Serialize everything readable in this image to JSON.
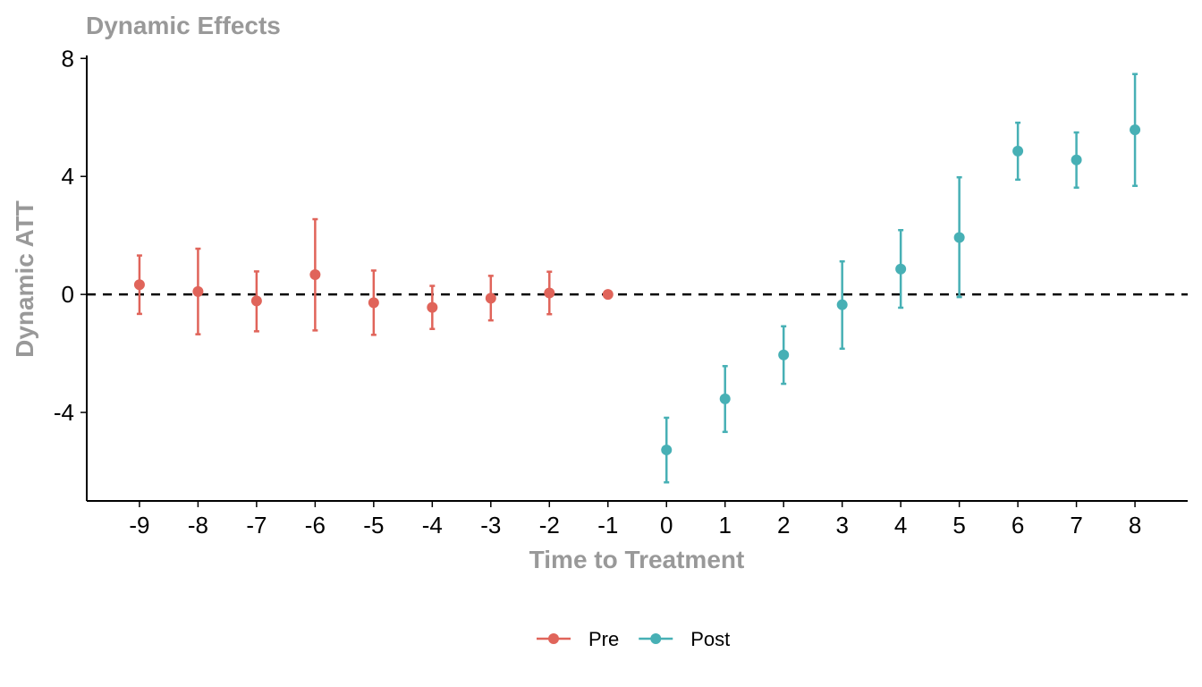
{
  "chart_data": {
    "type": "scatter",
    "title": "Dynamic Effects",
    "xlabel": "Time to Treatment",
    "ylabel": "Dynamic ATT",
    "x_ticks": [
      -9,
      -8,
      -7,
      -6,
      -5,
      -4,
      -3,
      -2,
      -1,
      0,
      1,
      2,
      3,
      4,
      5,
      6,
      7,
      8
    ],
    "y_ticks": [
      -4,
      0,
      4,
      8
    ],
    "xlim": [
      -9.9,
      8.9
    ],
    "ylim": [
      -7.0,
      8.1
    ],
    "reference_line": {
      "y": 0,
      "style": "dashed",
      "color": "#000000"
    },
    "grid": false,
    "legend_position": "bottom",
    "series": [
      {
        "name": "Pre",
        "color": "#E0645A",
        "points": [
          {
            "x": -9,
            "y": 0.33,
            "lower": -0.66,
            "upper": 1.32
          },
          {
            "x": -8,
            "y": 0.1,
            "lower": -1.35,
            "upper": 1.55
          },
          {
            "x": -7,
            "y": -0.22,
            "lower": -1.25,
            "upper": 0.78
          },
          {
            "x": -6,
            "y": 0.67,
            "lower": -1.22,
            "upper": 2.55
          },
          {
            "x": -5,
            "y": -0.28,
            "lower": -1.37,
            "upper": 0.81
          },
          {
            "x": -4,
            "y": -0.44,
            "lower": -1.17,
            "upper": 0.29
          },
          {
            "x": -3,
            "y": -0.13,
            "lower": -0.88,
            "upper": 0.63
          },
          {
            "x": -2,
            "y": 0.05,
            "lower": -0.67,
            "upper": 0.77
          },
          {
            "x": -1,
            "y": 0.0,
            "lower": 0.0,
            "upper": 0.0
          }
        ]
      },
      {
        "name": "Post",
        "color": "#47B0B5",
        "points": [
          {
            "x": 0,
            "y": -5.27,
            "lower": -6.37,
            "upper": -4.18
          },
          {
            "x": 1,
            "y": -3.54,
            "lower": -4.66,
            "upper": -2.43
          },
          {
            "x": 2,
            "y": -2.05,
            "lower": -3.03,
            "upper": -1.08
          },
          {
            "x": 3,
            "y": -0.35,
            "lower": -1.84,
            "upper": 1.12
          },
          {
            "x": 4,
            "y": 0.86,
            "lower": -0.45,
            "upper": 2.18
          },
          {
            "x": 5,
            "y": 1.93,
            "lower": -0.09,
            "upper": 3.97
          },
          {
            "x": 6,
            "y": 4.86,
            "lower": 3.89,
            "upper": 5.82
          },
          {
            "x": 7,
            "y": 4.56,
            "lower": 3.62,
            "upper": 5.49
          },
          {
            "x": 8,
            "y": 5.58,
            "lower": 3.68,
            "upper": 7.47
          }
        ]
      }
    ]
  }
}
